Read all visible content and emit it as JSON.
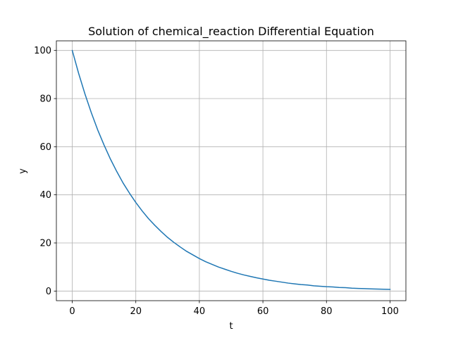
{
  "chart_data": {
    "type": "line",
    "title": "Solution of chemical_reaction Differential Equation",
    "xlabel": "t",
    "ylabel": "y",
    "xlim": [
      -5,
      105
    ],
    "ylim": [
      -4,
      104
    ],
    "xticks": [
      0,
      20,
      40,
      60,
      80,
      100
    ],
    "yticks": [
      0,
      20,
      40,
      60,
      80,
      100
    ],
    "grid": true,
    "colors": {
      "line": "#1f77b4",
      "grid": "#b0b0b0",
      "axes": "#000000"
    },
    "series": [
      {
        "x": [
          0,
          2,
          4,
          6,
          8,
          10,
          12,
          14,
          16,
          18,
          20,
          22,
          24,
          26,
          28,
          30,
          32,
          34,
          36,
          38,
          40,
          42,
          44,
          46,
          48,
          50,
          52,
          54,
          56,
          58,
          60,
          62,
          64,
          66,
          68,
          70,
          72,
          74,
          76,
          78,
          80,
          82,
          84,
          86,
          88,
          90,
          92,
          94,
          96,
          98,
          100
        ],
        "values": [
          100,
          90.5,
          81.9,
          74.1,
          67.0,
          60.7,
          54.9,
          49.7,
          44.9,
          40.7,
          36.8,
          33.3,
          30.1,
          27.3,
          24.7,
          22.3,
          20.2,
          18.3,
          16.5,
          15.0,
          13.5,
          12.2,
          11.1,
          10.0,
          9.1,
          8.2,
          7.4,
          6.7,
          6.1,
          5.5,
          5.0,
          4.5,
          4.1,
          3.7,
          3.3,
          3.0,
          2.7,
          2.5,
          2.2,
          2.0,
          1.8,
          1.7,
          1.5,
          1.4,
          1.2,
          1.1,
          1.0,
          0.91,
          0.82,
          0.74,
          0.67
        ]
      }
    ]
  }
}
